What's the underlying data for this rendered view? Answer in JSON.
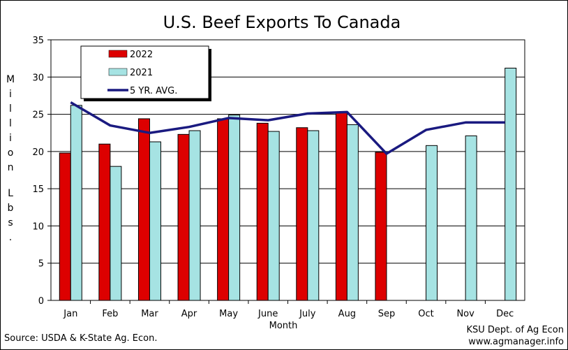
{
  "chart_data": {
    "type": "bar",
    "title": "U.S. Beef Exports To Canada",
    "xlabel": "Month",
    "ylabel": "Million Lbs.",
    "ylim": [
      0,
      35
    ],
    "yticks": [
      0,
      5,
      10,
      15,
      20,
      25,
      30,
      35
    ],
    "categories": [
      "Jan",
      "Feb",
      "Mar",
      "Apr",
      "May",
      "June",
      "July",
      "Aug",
      "Sep",
      "Oct",
      "Nov",
      "Dec"
    ],
    "series": [
      {
        "name": "2022",
        "type": "bar",
        "color": "#dd0000",
        "values": [
          19.8,
          21.0,
          24.4,
          22.3,
          24.4,
          23.8,
          23.2,
          25.3,
          19.9,
          null,
          null,
          null
        ]
      },
      {
        "name": "2021",
        "type": "bar",
        "color": "#a6e3e3",
        "values": [
          26.2,
          18.0,
          21.3,
          22.8,
          24.9,
          22.7,
          22.8,
          23.6,
          null,
          20.8,
          22.1,
          31.2
        ]
      },
      {
        "name": "5 YR. AVG.",
        "type": "line",
        "color": "#1a1a80",
        "values": [
          26.6,
          23.5,
          22.5,
          23.3,
          24.5,
          24.2,
          25.1,
          25.3,
          19.7,
          22.9,
          23.9,
          23.9
        ]
      }
    ],
    "grid": "horizontal",
    "legend_position": "top-left"
  },
  "footer": {
    "source": "Source:  USDA & K-State Ag. Econ.",
    "credit_line1": "KSU Dept. of Ag Econ",
    "credit_line2": "www.agmanager.info"
  }
}
